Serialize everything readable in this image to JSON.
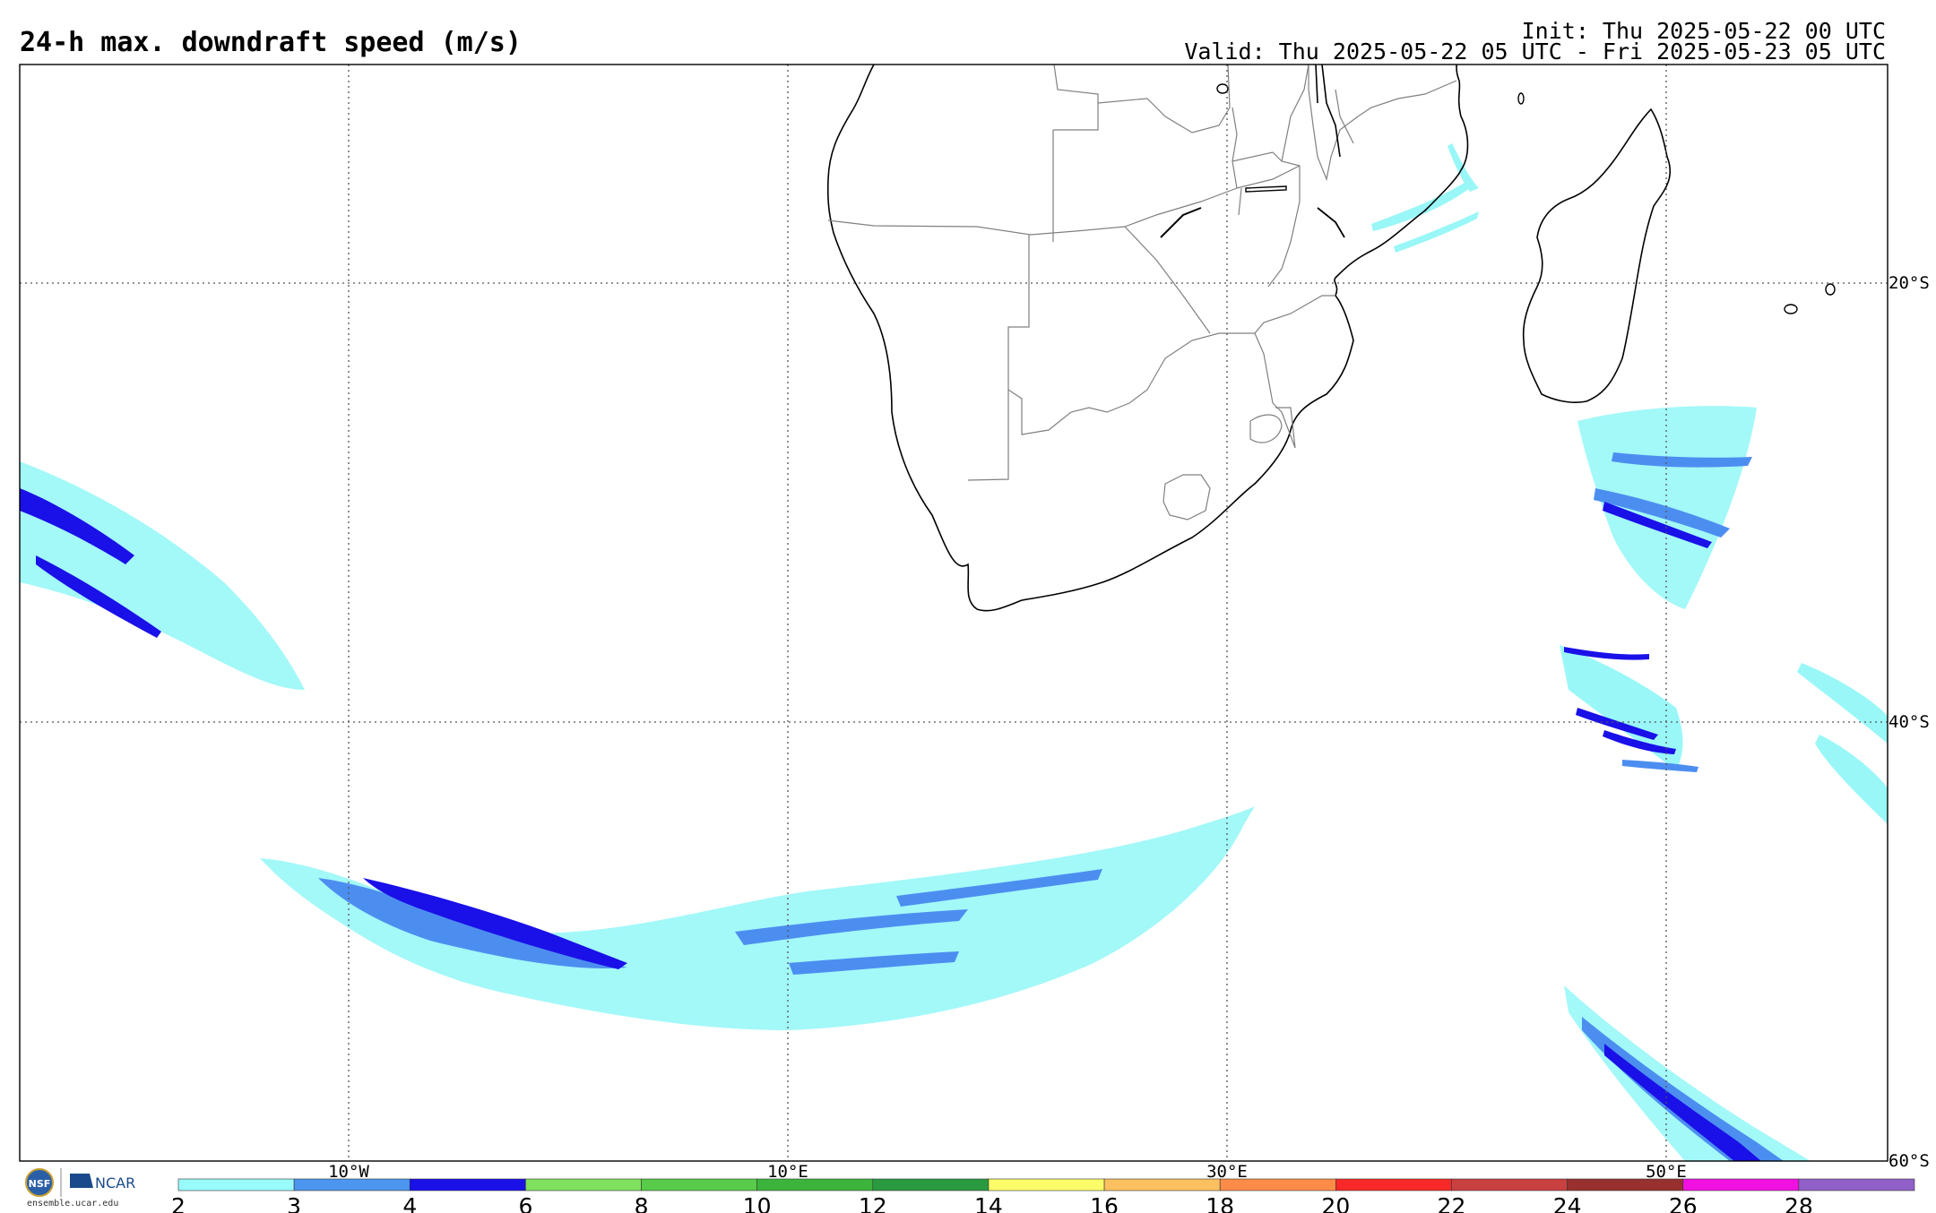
{
  "header": {
    "title": "24-h max. downdraft speed (m/s)",
    "init": "Init: Thu 2025-05-22 00 UTC",
    "valid": "Valid: Thu 2025-05-22 05 UTC - Fri 2025-05-23 05 UTC"
  },
  "map": {
    "lon_labels": [
      "10°W",
      "10°E",
      "30°E",
      "50°E"
    ],
    "lat_labels": [
      "20°S",
      "40°S",
      "60°S"
    ],
    "colors": {
      "land_outline": "#000000",
      "border": "#808080",
      "grid": "#555555",
      "light": "#99f7f7",
      "medium": "#4c8ef0",
      "dark": "#1a10e8"
    }
  },
  "colorbar": {
    "ticks": [
      "2",
      "3",
      "4",
      "6",
      "8",
      "10",
      "12",
      "14",
      "16",
      "18",
      "20",
      "22",
      "24",
      "26",
      "28"
    ],
    "colors": [
      "#99fbfb",
      "#4c96ef",
      "#1a10e8",
      "#80e060",
      "#58cc48",
      "#3cb43c",
      "#2a9a40",
      "#fcfc68",
      "#fcc060",
      "#fc8c48",
      "#f82828",
      "#c84040",
      "#983030",
      "#f010e0",
      "#9060c8"
    ]
  },
  "logo": {
    "nsf": "NSF",
    "ncar": "NCAR",
    "url": "ensemble.ucar.edu"
  }
}
